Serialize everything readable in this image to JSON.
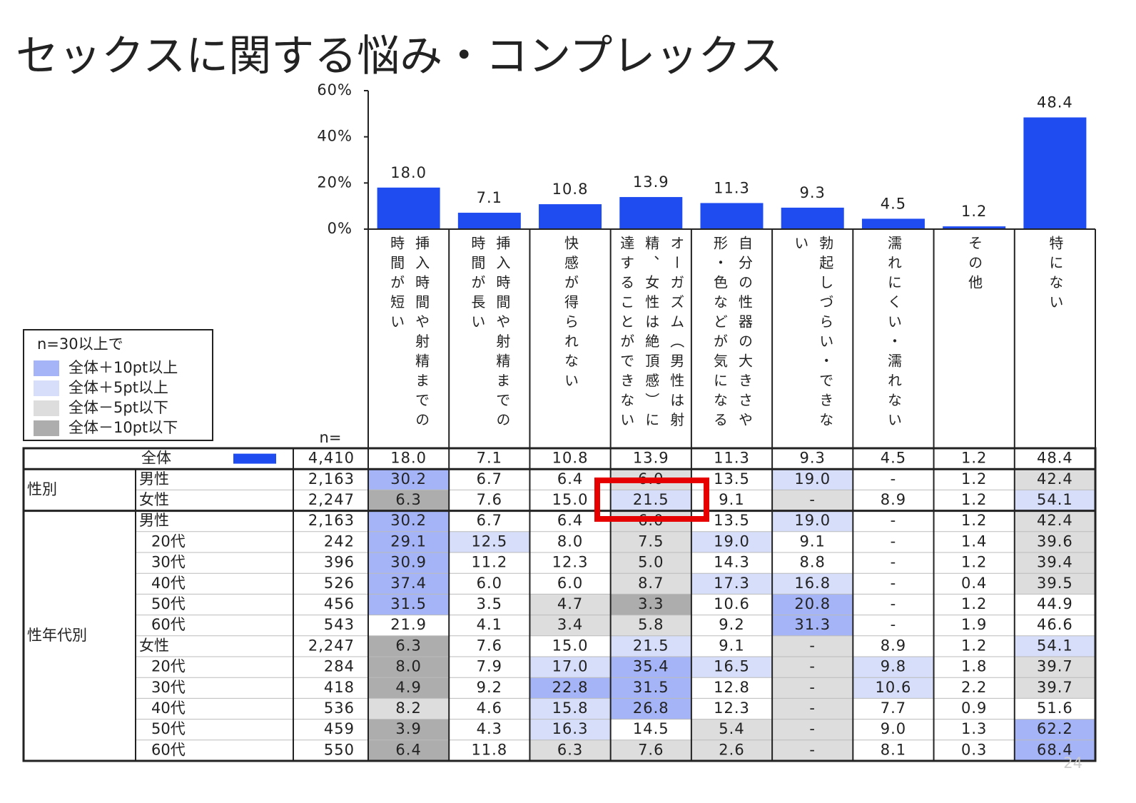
{
  "title": "セックスに関する悩み・コンプレックス",
  "chart_data": {
    "type": "bar",
    "categories": [
      "挿入時間や射精までの時間が短い",
      "挿入時間や射精までの時間が長い",
      "快感が得られない",
      "オーガズム（男性は射精、女性は絶頂感）に達することができない",
      "自分の性器の大きさや形・色などが気になる",
      "勃起しづらい・できない",
      "濡れにくい・濡れない",
      "その他",
      "特にない"
    ],
    "values": [
      18.0,
      7.1,
      10.8,
      13.9,
      11.3,
      9.3,
      4.5,
      1.2,
      48.4
    ],
    "value_labels": [
      "18.0",
      "7.1",
      "10.8",
      "13.9",
      "11.3",
      "9.3",
      "4.5",
      "1.2",
      "48.4"
    ],
    "color": "#1f4cf0",
    "ylim": [
      0,
      60
    ],
    "yticks": [
      {
        "value": 0,
        "label": "0%"
      },
      {
        "value": 20,
        "label": "20%"
      },
      {
        "value": 40,
        "label": "40%"
      },
      {
        "value": 60,
        "label": "60%"
      }
    ]
  },
  "legend": {
    "title": "n=30以上で",
    "items": [
      {
        "label": "全体＋10pt以上",
        "color": "#a4b4f6"
      },
      {
        "label": "全体＋5pt以上",
        "color": "#d6defa"
      },
      {
        "label": "全体－5pt以下",
        "color": "#dddddd"
      },
      {
        "label": "全体－10pt以下",
        "color": "#adadad"
      }
    ]
  },
  "table": {
    "n_header": "n=",
    "sections": [
      {
        "rows": [
          {
            "label": "全体",
            "n": "4,410",
            "cells": [
              "18.0",
              "7.1",
              "10.8",
              "13.9",
              "11.3",
              "9.3",
              "4.5",
              "1.2",
              "48.4"
            ],
            "shades": [
              null,
              null,
              null,
              null,
              null,
              null,
              null,
              null,
              null
            ]
          }
        ]
      },
      {
        "label": "性別",
        "rows": [
          {
            "label": "男性",
            "n": "2,163",
            "cells": [
              "30.2",
              "6.7",
              "6.4",
              "6.0",
              "13.5",
              "19.0",
              "-",
              "1.2",
              "42.4"
            ],
            "shades": [
              0,
              null,
              null,
              2,
              null,
              1,
              null,
              null,
              2
            ]
          },
          {
            "label": "女性",
            "n": "2,247",
            "cells": [
              "6.3",
              "7.6",
              "15.0",
              "21.5",
              "9.1",
              "-",
              "8.9",
              "1.2",
              "54.1"
            ],
            "shades": [
              3,
              null,
              null,
              1,
              null,
              2,
              null,
              null,
              1
            ]
          }
        ]
      },
      {
        "label": "性年代別",
        "rows": [
          {
            "label": "男性",
            "n": "2,163",
            "cells": [
              "30.2",
              "6.7",
              "6.4",
              "6.0",
              "13.5",
              "19.0",
              "-",
              "1.2",
              "42.4"
            ],
            "shades": [
              0,
              null,
              null,
              2,
              null,
              1,
              null,
              null,
              2
            ]
          },
          {
            "label": "20代",
            "indent": true,
            "n": "242",
            "cells": [
              "29.1",
              "12.5",
              "8.0",
              "7.5",
              "19.0",
              "9.1",
              "-",
              "1.4",
              "39.6"
            ],
            "shades": [
              0,
              1,
              null,
              2,
              1,
              null,
              null,
              null,
              2
            ]
          },
          {
            "label": "30代",
            "indent": true,
            "n": "396",
            "cells": [
              "30.9",
              "11.2",
              "12.3",
              "5.0",
              "14.3",
              "8.8",
              "-",
              "1.2",
              "39.4"
            ],
            "shades": [
              0,
              null,
              null,
              2,
              null,
              null,
              null,
              null,
              2
            ]
          },
          {
            "label": "40代",
            "indent": true,
            "n": "526",
            "cells": [
              "37.4",
              "6.0",
              "6.0",
              "8.7",
              "17.3",
              "16.8",
              "-",
              "0.4",
              "39.5"
            ],
            "shades": [
              0,
              null,
              null,
              2,
              1,
              1,
              null,
              null,
              2
            ]
          },
          {
            "label": "50代",
            "indent": true,
            "n": "456",
            "cells": [
              "31.5",
              "3.5",
              "4.7",
              "3.3",
              "10.6",
              "20.8",
              "-",
              "1.2",
              "44.9"
            ],
            "shades": [
              0,
              null,
              2,
              3,
              null,
              0,
              null,
              null,
              null
            ]
          },
          {
            "label": "60代",
            "indent": true,
            "n": "543",
            "cells": [
              "21.9",
              "4.1",
              "3.4",
              "5.8",
              "9.2",
              "31.3",
              "-",
              "1.9",
              "46.6"
            ],
            "shades": [
              null,
              null,
              2,
              2,
              null,
              0,
              null,
              null,
              null
            ]
          },
          {
            "label": "女性",
            "n": "2,247",
            "cells": [
              "6.3",
              "7.6",
              "15.0",
              "21.5",
              "9.1",
              "-",
              "8.9",
              "1.2",
              "54.1"
            ],
            "shades": [
              3,
              null,
              null,
              1,
              null,
              2,
              null,
              null,
              1
            ]
          },
          {
            "label": "20代",
            "indent": true,
            "n": "284",
            "cells": [
              "8.0",
              "7.9",
              "17.0",
              "35.4",
              "16.5",
              "-",
              "9.8",
              "1.8",
              "39.7"
            ],
            "shades": [
              3,
              null,
              1,
              0,
              1,
              2,
              1,
              null,
              2
            ]
          },
          {
            "label": "30代",
            "indent": true,
            "n": "418",
            "cells": [
              "4.9",
              "9.2",
              "22.8",
              "31.5",
              "12.8",
              "-",
              "10.6",
              "2.2",
              "39.7"
            ],
            "shades": [
              3,
              null,
              0,
              0,
              null,
              2,
              1,
              null,
              2
            ]
          },
          {
            "label": "40代",
            "indent": true,
            "n": "536",
            "cells": [
              "8.2",
              "4.6",
              "15.8",
              "26.8",
              "12.3",
              "-",
              "7.7",
              "0.9",
              "51.6"
            ],
            "shades": [
              2,
              null,
              1,
              0,
              null,
              2,
              null,
              null,
              null
            ]
          },
          {
            "label": "50代",
            "indent": true,
            "n": "459",
            "cells": [
              "3.9",
              "4.3",
              "16.3",
              "14.5",
              "5.4",
              "-",
              "9.0",
              "1.3",
              "62.2"
            ],
            "shades": [
              3,
              null,
              1,
              null,
              2,
              2,
              null,
              null,
              0
            ]
          },
          {
            "label": "60代",
            "indent": true,
            "n": "550",
            "cells": [
              "6.4",
              "11.8",
              "6.3",
              "7.6",
              "2.6",
              "-",
              "8.1",
              "0.3",
              "68.4"
            ],
            "shades": [
              3,
              null,
              2,
              2,
              2,
              2,
              null,
              null,
              0
            ]
          }
        ]
      }
    ]
  },
  "page_number": "24"
}
